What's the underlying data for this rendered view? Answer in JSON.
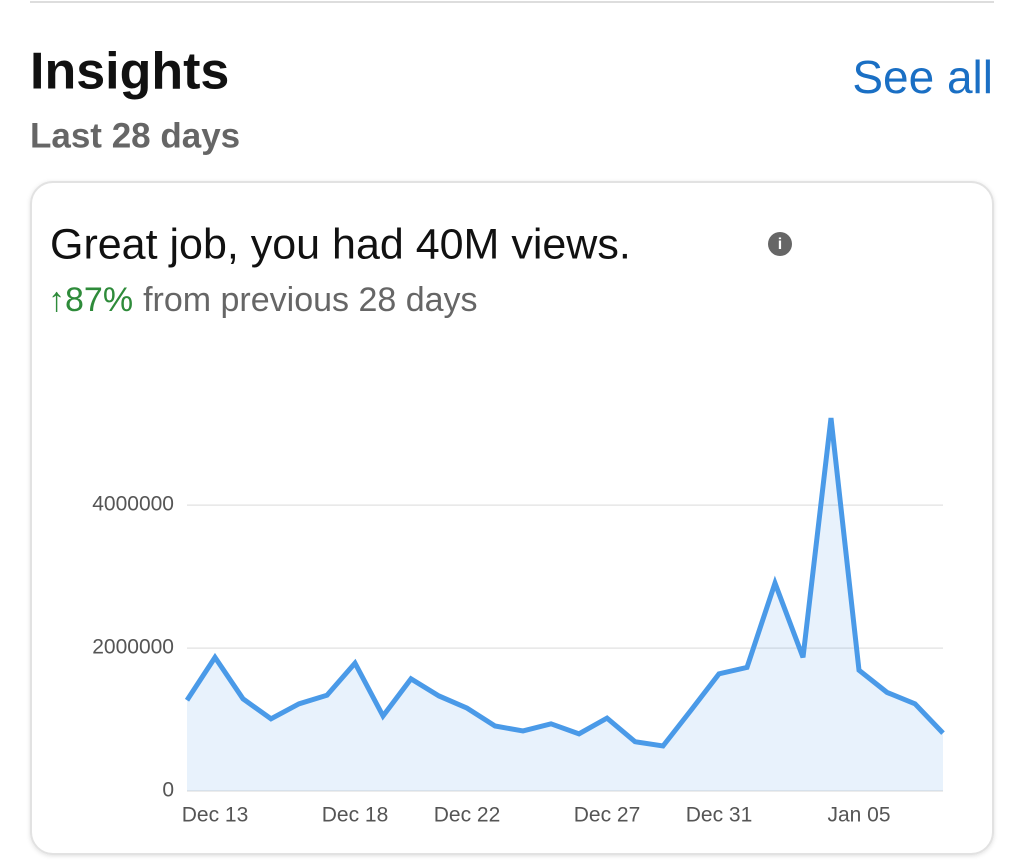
{
  "header": {
    "title": "Insights",
    "subtitle": "Last 28 days",
    "link": "See all"
  },
  "card": {
    "headline": "Great job, you had 40M views.",
    "change": "↑87%",
    "change_text": "from previous 28 days"
  },
  "chart_data": {
    "type": "line",
    "categories": [
      null,
      "Dec 13",
      null,
      null,
      null,
      null,
      "Dec 18",
      null,
      null,
      null,
      "Dec 22",
      null,
      null,
      null,
      null,
      "Dec 27",
      null,
      null,
      null,
      "Dec 31",
      null,
      null,
      null,
      null,
      "Jan 05",
      null,
      null,
      null
    ],
    "values": [
      1270000,
      1870000,
      1290000,
      1010000,
      1220000,
      1340000,
      1790000,
      1050000,
      1570000,
      1330000,
      1160000,
      910000,
      840000,
      940000,
      800000,
      1020000,
      690000,
      630000,
      1130000,
      1640000,
      1730000,
      2910000,
      1870000,
      5220000,
      1690000,
      1380000,
      1220000,
      810000
    ],
    "color": "#4a9ae8",
    "ylim": [
      0,
      5500000
    ],
    "yticks": [
      0,
      2000000,
      4000000
    ],
    "grid": true
  }
}
